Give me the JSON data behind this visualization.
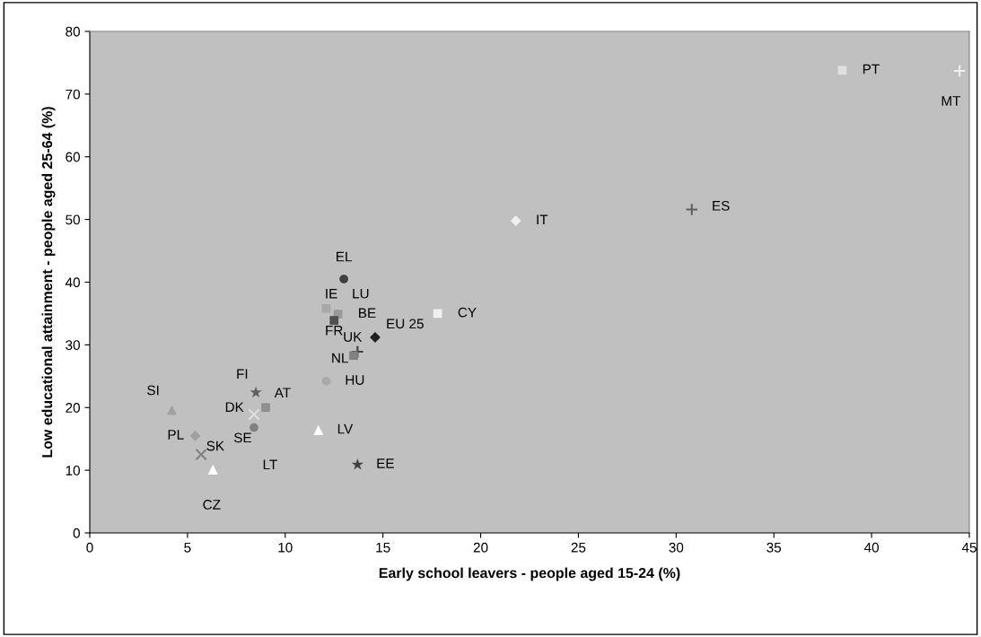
{
  "chart_data": {
    "type": "scatter",
    "xlabel": "Early school leavers - people aged 15-24 (%)",
    "ylabel": "Low educational attainment - people aged 25-64 (%)",
    "xlim": [
      0,
      45
    ],
    "xticks": [
      0,
      5,
      10,
      15,
      20,
      25,
      30,
      35,
      40,
      45
    ],
    "ylim": [
      0,
      80
    ],
    "yticks": [
      0,
      10,
      20,
      30,
      40,
      50,
      60,
      70,
      80
    ],
    "grid": false,
    "legend": false,
    "series": [
      {
        "name": "SI",
        "color": "#a0a0a0",
        "marker": "triangle",
        "x": [
          4.2
        ],
        "values": [
          19.6
        ]
      },
      {
        "name": "FI",
        "color": "#606060",
        "marker": "star",
        "x": [
          8.5
        ],
        "values": [
          22.4
        ]
      },
      {
        "name": "AT",
        "color": "#909090",
        "marker": "square",
        "x": [
          9.0
        ],
        "values": [
          20.0
        ]
      },
      {
        "name": "DK",
        "color": "#e0e0e0",
        "marker": "cross",
        "x": [
          8.4
        ],
        "values": [
          18.9
        ]
      },
      {
        "name": "SE",
        "color": "#808080",
        "marker": "circle",
        "x": [
          8.4
        ],
        "values": [
          16.8
        ]
      },
      {
        "name": "PL",
        "color": "#a0a0a0",
        "marker": "diamond",
        "x": [
          5.4
        ],
        "values": [
          15.5
        ]
      },
      {
        "name": "SK",
        "color": "#808080",
        "marker": "cross",
        "x": [
          5.7
        ],
        "values": [
          12.5
        ]
      },
      {
        "name": "CZ",
        "color": "#ffffff",
        "marker": "triangle",
        "x": [
          6.3
        ],
        "values": [
          10.1
        ]
      },
      {
        "name": "LV",
        "color": "#ffffff",
        "marker": "triangle",
        "x": [
          11.7
        ],
        "values": [
          16.4
        ]
      },
      {
        "name": "HU",
        "color": "#a8a8a8",
        "marker": "circle",
        "x": [
          12.1
        ],
        "values": [
          24.2
        ]
      },
      {
        "name": "EE",
        "color": "#404040",
        "marker": "star",
        "x": [
          13.7
        ],
        "values": [
          10.9
        ]
      },
      {
        "name": "LT",
        "marker": "none",
        "x": [
          null
        ],
        "values": [
          null
        ]
      },
      {
        "name": "EL",
        "color": "#404040",
        "marker": "circle",
        "x": [
          13.0
        ],
        "values": [
          40.5
        ]
      },
      {
        "name": "IE",
        "color": "#a8a8a8",
        "marker": "square",
        "x": [
          12.1
        ],
        "values": [
          35.8
        ]
      },
      {
        "name": "LU",
        "marker": "none",
        "x": [
          null
        ],
        "values": [
          null
        ]
      },
      {
        "name": "BE",
        "color": "#999999",
        "marker": "square",
        "x": [
          12.7
        ],
        "values": [
          34.9
        ]
      },
      {
        "name": "FR",
        "color": "#505050",
        "marker": "square",
        "x": [
          12.5
        ],
        "values": [
          33.9
        ]
      },
      {
        "name": "EU 25",
        "color": "#202020",
        "marker": "diamond",
        "x": [
          14.6
        ],
        "values": [
          31.2
        ]
      },
      {
        "name": "CY",
        "color": "#f0f0f0",
        "marker": "square",
        "x": [
          17.8
        ],
        "values": [
          35.0
        ]
      },
      {
        "name": "UK",
        "color": "#404040",
        "marker": "plus",
        "x": [
          13.7
        ],
        "values": [
          28.9
        ]
      },
      {
        "name": "NL",
        "color": "#808080",
        "marker": "square",
        "x": [
          13.5
        ],
        "values": [
          28.3
        ]
      },
      {
        "name": "IT",
        "color": "#f0f0f0",
        "marker": "diamond",
        "x": [
          21.8
        ],
        "values": [
          49.8
        ]
      },
      {
        "name": "ES",
        "color": "#606060",
        "marker": "plus",
        "x": [
          30.8
        ],
        "values": [
          51.6
        ]
      },
      {
        "name": "PT",
        "color": "#e0e0e0",
        "marker": "square",
        "x": [
          38.5
        ],
        "values": [
          73.8
        ]
      },
      {
        "name": "MT",
        "color": "#f0f0f0",
        "marker": "plus",
        "x": [
          44.5
        ],
        "values": [
          73.7
        ]
      }
    ]
  }
}
